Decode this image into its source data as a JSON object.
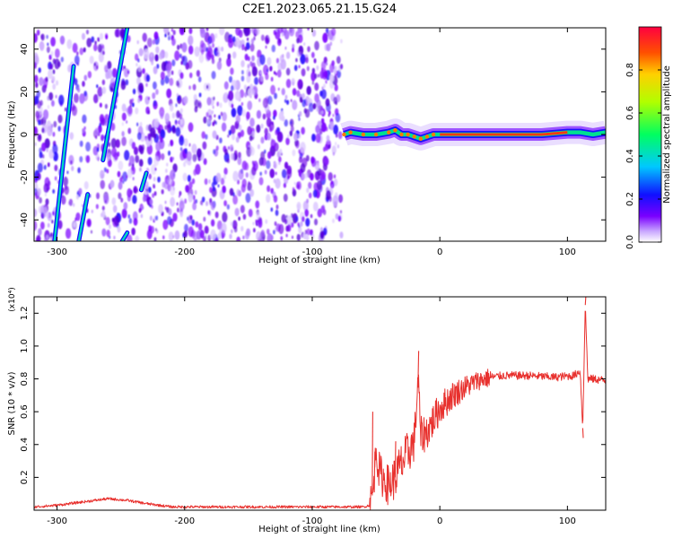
{
  "title": "C2E1.2023.065.21.15.G24",
  "chart_data": [
    {
      "type": "heatmap",
      "xlabel": "Height of straight line (km)",
      "ylabel": "Frequency (Hz)",
      "xlim": [
        -318,
        130
      ],
      "ylim": [
        -50,
        50
      ],
      "xticks": [
        -300,
        -200,
        -100,
        0,
        100
      ],
      "yticks": [
        -40,
        -20,
        0,
        20,
        40
      ],
      "colorbar": {
        "label": "Normalized spectral amplitude",
        "range": [
          0,
          1
        ],
        "ticks": [
          "0.0",
          "0.2",
          "0.4",
          "0.6",
          "0.8"
        ],
        "colormap": "rainbow (white/violet low → red high)"
      },
      "data_region_end_x": -77,
      "ridge": [
        [
          -75,
          0
        ],
        [
          -70,
          1
        ],
        [
          -60,
          0
        ],
        [
          -50,
          0
        ],
        [
          -40,
          1
        ],
        [
          -35,
          2
        ],
        [
          -30,
          0
        ],
        [
          -25,
          0
        ],
        [
          -20,
          -1
        ],
        [
          -15,
          -2
        ],
        [
          -10,
          -1
        ],
        [
          -5,
          0
        ],
        [
          0,
          0
        ],
        [
          20,
          0
        ],
        [
          50,
          0
        ],
        [
          80,
          0
        ],
        [
          100,
          1
        ],
        [
          110,
          1
        ],
        [
          120,
          0
        ],
        [
          130,
          1
        ]
      ],
      "strong_ridge_range": [
        0,
        100
      ],
      "aliased_streaks": [
        {
          "x": [
            -302,
            -287
          ],
          "y": [
            -50,
            32
          ]
        },
        {
          "x": [
            -283,
            -276
          ],
          "y": [
            -50,
            -28
          ]
        },
        {
          "x": [
            -264,
            -245
          ],
          "y": [
            -12,
            50
          ]
        },
        {
          "x": [
            -249,
            -245
          ],
          "y": [
            -50,
            -46
          ]
        },
        {
          "x": [
            -234,
            -230
          ],
          "y": [
            -26,
            -18
          ]
        }
      ]
    },
    {
      "type": "line",
      "xlabel": "Height of straight line (km)",
      "ylabel": "SNR (10 * v/v)",
      "y_multiplier": "(x10⁴)",
      "xlim": [
        -318,
        130
      ],
      "ylim": [
        0,
        1.3
      ],
      "xticks": [
        -300,
        -200,
        -100,
        0,
        100
      ],
      "yticks": [
        "0.2",
        "0.4",
        "0.6",
        "0.8",
        "1.0",
        "1.2"
      ],
      "color": "#e8312e",
      "series": [
        {
          "values": [
            [
              -318,
              0.02
            ],
            [
              -300,
              0.03
            ],
            [
              -280,
              0.05
            ],
            [
              -260,
              0.07
            ],
            [
              -245,
              0.06
            ],
            [
              -230,
              0.04
            ],
            [
              -210,
              0.02
            ],
            [
              -180,
              0.02
            ],
            [
              -150,
              0.02
            ],
            [
              -120,
              0.02
            ],
            [
              -100,
              0.02
            ],
            [
              -80,
              0.02
            ],
            [
              -60,
              0.02
            ],
            [
              -55,
              0.03
            ],
            [
              -52,
              0.12
            ],
            [
              -50,
              0.4
            ],
            [
              -48,
              0.25
            ],
            [
              -45,
              0.2
            ],
            [
              -40,
              0.15
            ],
            [
              -35,
              0.2
            ],
            [
              -30,
              0.28
            ],
            [
              -25,
              0.35
            ],
            [
              -20,
              0.42
            ],
            [
              -17,
              0.8
            ],
            [
              -15,
              0.45
            ],
            [
              -10,
              0.48
            ],
            [
              -5,
              0.55
            ],
            [
              0,
              0.62
            ],
            [
              5,
              0.66
            ],
            [
              10,
              0.7
            ],
            [
              20,
              0.75
            ],
            [
              30,
              0.79
            ],
            [
              40,
              0.81
            ],
            [
              50,
              0.82
            ],
            [
              70,
              0.82
            ],
            [
              90,
              0.81
            ],
            [
              105,
              0.82
            ],
            [
              110,
              0.85
            ],
            [
              112,
              0.5
            ],
            [
              114,
              1.25
            ],
            [
              116,
              0.8
            ],
            [
              120,
              0.8
            ],
            [
              130,
              0.79
            ]
          ]
        }
      ],
      "spikes": [
        [
          -53,
          0.6
        ],
        [
          -51,
          0.38
        ],
        [
          -35,
          0.42
        ],
        [
          -17,
          0.97
        ],
        [
          114,
          1.3
        ],
        [
          112,
          0.44
        ]
      ]
    }
  ]
}
